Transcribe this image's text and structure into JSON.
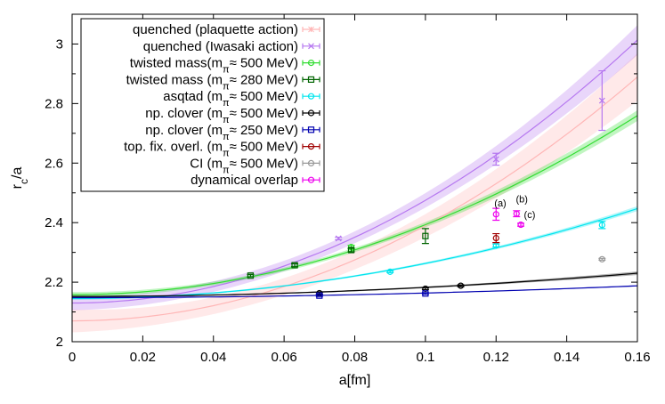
{
  "chart_data": {
    "type": "scatter",
    "xlabel": "a[fm]",
    "ylabel": "r_c/a",
    "xlim": [
      0,
      0.16
    ],
    "ylim": [
      2,
      3.1
    ],
    "xticks": [
      "0",
      "0.02",
      "0.04",
      "0.06",
      "0.08",
      "0.1",
      "0.12",
      "0.14",
      "0.16"
    ],
    "yticks": [
      "2",
      "2.2",
      "2.4",
      "2.6",
      "2.8",
      "3"
    ],
    "legend_position": "top-left",
    "series": [
      {
        "name": "quenched (plaquette action)",
        "color": "#ffb6b6",
        "marker": "star",
        "points": [],
        "fit": {
          "c0": 2.07,
          "c2": 32.0,
          "band": 0.08
        }
      },
      {
        "name": "quenched (Iwasaki action)",
        "color": "#b678f0",
        "marker": "x",
        "points": [
          [
            0.0754,
            2.347,
            0.004
          ],
          [
            0.12,
            2.613,
            0.02
          ],
          [
            0.15,
            2.81,
            0.1
          ]
        ],
        "fit": {
          "c0": 2.13,
          "c2": 34.5,
          "band": 0.05
        }
      },
      {
        "name": "twisted mass(mπ≈ 500 MeV)",
        "color": "#33dd33",
        "marker": "circle",
        "points": [
          [
            0.079,
            2.318,
            0.006
          ]
        ],
        "fit": {
          "c0": 2.158,
          "c2": 23.5,
          "band": 0.018
        }
      },
      {
        "name": "twisted mass (mπ≈ 280 MeV)",
        "color": "#006400",
        "marker": "square",
        "points": [
          [
            0.0505,
            2.222,
            0.004
          ],
          [
            0.063,
            2.257,
            0.005
          ],
          [
            0.079,
            2.308,
            0.006
          ],
          [
            0.1,
            2.355,
            0.025
          ]
        ],
        "fit": null
      },
      {
        "name": "asqtad (mπ≈ 500 MeV)",
        "color": "#00e5ee",
        "marker": "circle",
        "points": [
          [
            0.09,
            2.235,
            0.003
          ],
          [
            0.12,
            2.323,
            0.005
          ],
          [
            0.15,
            2.392,
            0.012
          ]
        ],
        "fit": {
          "c0": 2.145,
          "c2": 11.8,
          "band": 0.008
        }
      },
      {
        "name": "np. clover (mπ≈ 500 MeV)",
        "color": "#000000",
        "marker": "circle",
        "points": [
          [
            0.07,
            2.163,
            0.003
          ],
          [
            0.1,
            2.178,
            0.003
          ],
          [
            0.11,
            2.188,
            0.003
          ]
        ],
        "fit": {
          "c0": 2.152,
          "c2": 3.05,
          "band": 0.006
        }
      },
      {
        "name": "np. clover (mπ≈ 250 MeV)",
        "color": "#0000b0",
        "marker": "square",
        "points": [
          [
            0.07,
            2.155,
            0.003
          ],
          [
            0.1,
            2.162,
            0.003
          ]
        ],
        "fit": {
          "c0": 2.148,
          "c2": 1.55,
          "band": 0.002
        }
      },
      {
        "name": "top. fix. overl. (mπ≈ 500 MeV)",
        "color": "#a00000",
        "marker": "circle",
        "points": [
          [
            0.12,
            2.348,
            0.015
          ]
        ],
        "fit": null
      },
      {
        "name": "CI (mπ≈ 500 MeV)",
        "color": "#999999",
        "marker": "circle",
        "points": [
          [
            0.15,
            2.277,
            0.003
          ]
        ],
        "fit": null
      },
      {
        "name": "dynamical overlap",
        "color": "#ee00ee",
        "marker": "circle",
        "points": [
          [
            0.12,
            2.428,
            0.02
          ],
          [
            0.1258,
            2.43,
            0.01
          ],
          [
            0.127,
            2.393,
            0.005
          ]
        ],
        "fit": null
      }
    ],
    "annotations": [
      {
        "text": "(a)",
        "x": 0.1212,
        "y": 2.455
      },
      {
        "text": "(b)",
        "x": 0.1273,
        "y": 2.468
      },
      {
        "text": "(c)",
        "x": 0.1295,
        "y": 2.415
      }
    ]
  }
}
